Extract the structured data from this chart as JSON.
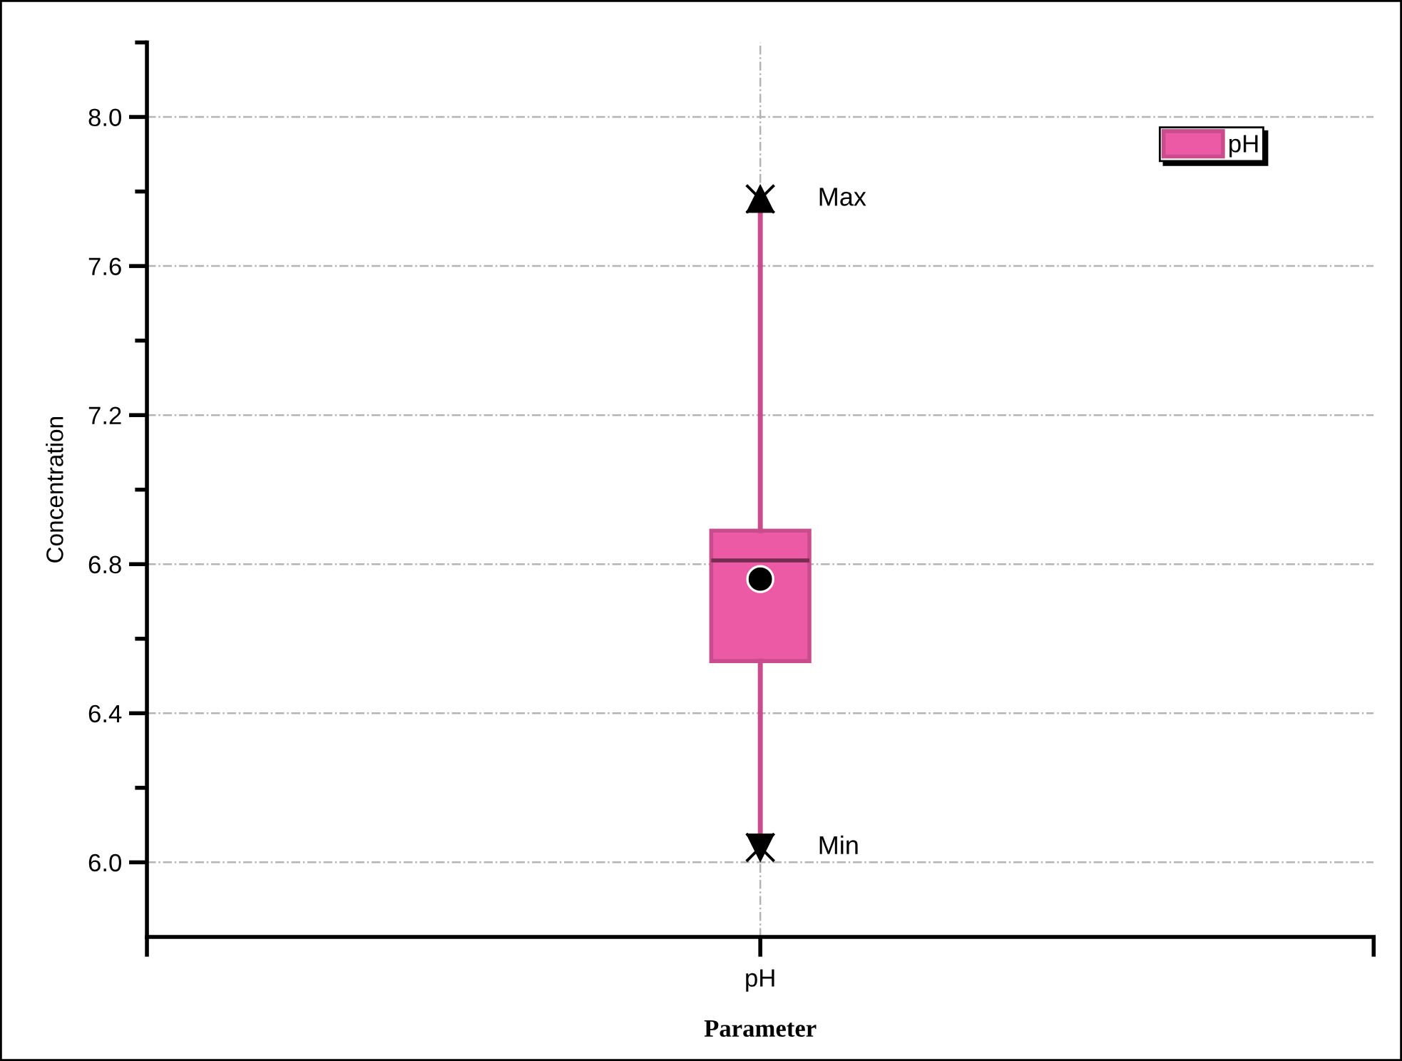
{
  "chart_data": {
    "type": "box",
    "xlabel": "Parameter",
    "ylabel": "Concentration",
    "categories": [
      "pH"
    ],
    "series": [
      {
        "name": "pH",
        "color": "#ec5aa5",
        "boxes": [
          {
            "low": 6.04,
            "q1": 6.54,
            "median": 6.81,
            "q3": 6.89,
            "high": 7.78,
            "mean": 6.76
          }
        ]
      }
    ],
    "ylim": [
      5.8,
      8.2
    ],
    "yticks": [
      {
        "value": 6.0,
        "label": "6.0"
      },
      {
        "value": 6.2,
        "label": null
      },
      6.4,
      {
        "value": 6.6,
        "label": null
      },
      6.8,
      {
        "value": 7.0,
        "label": null
      },
      7.2,
      {
        "value": 7.4,
        "label": null
      },
      7.6,
      {
        "value": 7.8,
        "label": null
      },
      {
        "value": 8.0,
        "label": "8.0"
      },
      {
        "value": 8.2,
        "label": null
      }
    ],
    "grid": true,
    "legend": "top right",
    "annotations": [
      {
        "text": "Max",
        "x": "pH",
        "y": 7.78
      },
      {
        "text": "Min",
        "x": "pH",
        "y": 6.04
      }
    ]
  }
}
